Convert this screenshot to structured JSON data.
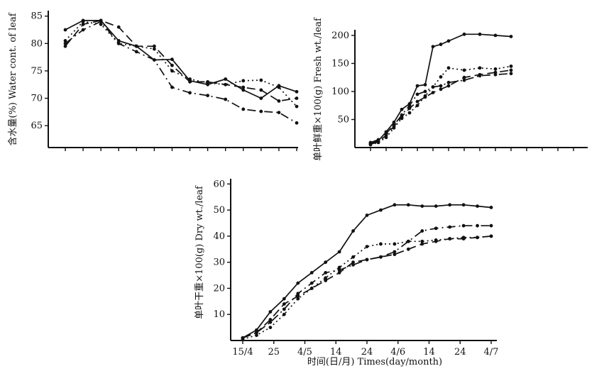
{
  "chart_data": [
    {
      "type": "line",
      "ylabel": "含水量(%) Water cont. of leaf",
      "xlabel": "",
      "ylim": [
        61,
        86
      ],
      "yticks": [
        65,
        70,
        75,
        80,
        85
      ],
      "xticks_labeled": false,
      "x": [
        0,
        1,
        2,
        3,
        4,
        5,
        6,
        7,
        8,
        9,
        10,
        11,
        12,
        13
      ],
      "series": [
        {
          "style": "solid",
          "values": [
            82.5,
            84.2,
            84.2,
            80.5,
            79.5,
            77.0,
            77.1,
            73.2,
            72.5,
            73.5,
            71.5,
            70.0,
            72.3,
            71.2
          ]
        },
        {
          "style": "dashed",
          "values": [
            79.5,
            83.5,
            84.2,
            83.0,
            79.5,
            79.5,
            76.0,
            73.0,
            73.0,
            72.5,
            72.0,
            71.5,
            69.5,
            70.0
          ]
        },
        {
          "style": "dotted",
          "values": [
            80.5,
            84.0,
            83.5,
            80.0,
            79.5,
            79.0,
            75.0,
            73.5,
            72.8,
            72.5,
            73.2,
            73.3,
            72.0,
            68.5
          ]
        },
        {
          "style": "dash-dot",
          "values": [
            80.0,
            82.5,
            84.0,
            80.0,
            78.5,
            77.0,
            72.0,
            71.0,
            70.5,
            69.8,
            68.0,
            67.6,
            67.4,
            65.5
          ]
        }
      ]
    },
    {
      "type": "line",
      "ylabel": "单叶鲜重×100(g) Fresh wt./leaf",
      "xlabel": "",
      "ylim": [
        0,
        210
      ],
      "yticks": [
        50,
        100,
        150,
        200
      ],
      "xticks_labeled": false,
      "x": [
        0,
        0.5,
        1,
        1.5,
        2,
        2.5,
        3,
        3.5,
        4,
        4.5,
        5,
        6,
        7,
        8,
        9,
        10,
        11,
        12,
        13
      ],
      "series": [
        {
          "style": "solid",
          "values": [
            8,
            12,
            28,
            45,
            68,
            78,
            110,
            112,
            180,
            184,
            190,
            202,
            202,
            200,
            198,
            null,
            null,
            null,
            null
          ]
        },
        {
          "style": "dashed",
          "values": [
            6,
            10,
            22,
            38,
            55,
            70,
            82,
            90,
            98,
            104,
            110,
            125,
            130,
            134,
            138,
            null,
            null,
            null,
            null
          ]
        },
        {
          "style": "dotted",
          "values": [
            5,
            9,
            18,
            35,
            52,
            62,
            75,
            92,
            108,
            126,
            142,
            138,
            142,
            140,
            145,
            null,
            null,
            null,
            null
          ]
        },
        {
          "style": "dash-dot",
          "values": [
            9,
            14,
            25,
            40,
            58,
            75,
            95,
            100,
            108,
            110,
            116,
            120,
            128,
            130,
            132,
            null,
            null,
            null,
            null
          ]
        }
      ]
    },
    {
      "type": "line",
      "ylabel": "单叶干重×100(g) Dry wt./leaf",
      "xlabel": "时间(日/月) Times(day/month)",
      "ylim": [
        0,
        62
      ],
      "yticks": [
        10,
        20,
        30,
        40,
        50,
        60
      ],
      "categories": [
        "15/4",
        "25",
        "4/5",
        "14",
        "24",
        "4/6",
        "14",
        "24",
        "4/7"
      ],
      "x": [
        0,
        0.5,
        1,
        1.5,
        2,
        2.5,
        3,
        3.5,
        4,
        4.5,
        5,
        5.5,
        6,
        6.5,
        7,
        7.5,
        8,
        8.5,
        9
      ],
      "series": [
        {
          "style": "solid",
          "values": [
            1,
            4,
            11,
            16,
            22,
            26,
            30,
            34,
            42,
            48,
            50,
            52,
            52,
            51.5,
            51.5,
            52,
            52,
            51.5,
            51
          ]
        },
        {
          "style": "dashed",
          "values": [
            1,
            3,
            8,
            14,
            17,
            20,
            23,
            26,
            30,
            31,
            32,
            33,
            35,
            37,
            38,
            39,
            39,
            39.5,
            40
          ]
        },
        {
          "style": "dotted",
          "values": [
            0.5,
            2,
            5,
            10,
            16,
            20,
            24,
            28,
            32,
            36,
            37,
            37,
            38,
            38,
            38.5,
            39,
            39.5,
            39.5,
            40
          ]
        },
        {
          "style": "dash-dot",
          "values": [
            1,
            3,
            7,
            12,
            18,
            22,
            26,
            27,
            29,
            31,
            32,
            34,
            38,
            42,
            43,
            43.5,
            44,
            44,
            44
          ]
        }
      ]
    }
  ]
}
